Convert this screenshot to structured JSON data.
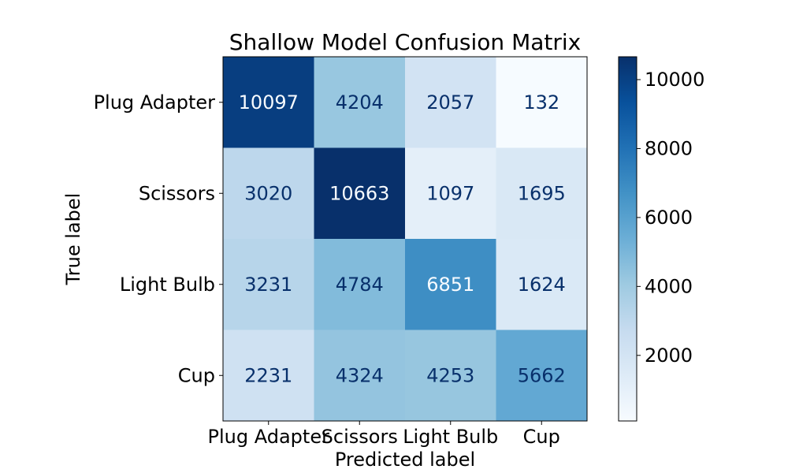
{
  "chart_data": {
    "type": "heatmap",
    "title": "Shallow Model Confusion Matrix",
    "xlabel": "Predicted label",
    "ylabel": "True label",
    "x_categories": [
      "Plug Adapter",
      "Scissors",
      "Light Bulb",
      "Cup"
    ],
    "y_categories": [
      "Plug Adapter",
      "Scissors",
      "Light Bulb",
      "Cup"
    ],
    "values": [
      [
        10097,
        4204,
        2057,
        132
      ],
      [
        3020,
        10663,
        1097,
        1695
      ],
      [
        3231,
        4784,
        6851,
        1624
      ],
      [
        2231,
        4324,
        4253,
        5662
      ]
    ],
    "colorscale": "Blues",
    "colorbar_ticks": [
      2000,
      4000,
      6000,
      8000,
      10000
    ],
    "vmin": 97,
    "vmax": 10663
  }
}
